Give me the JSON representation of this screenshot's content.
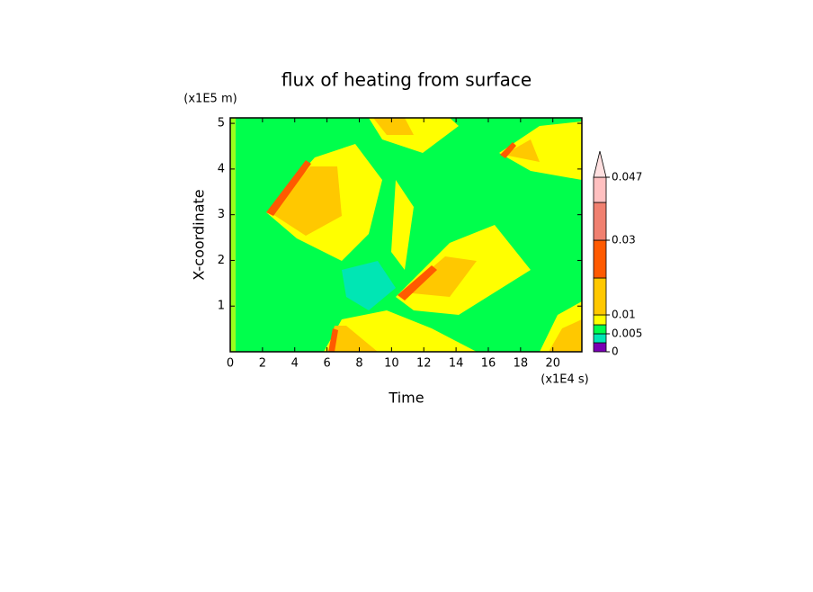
{
  "chart_data": {
    "type": "contour",
    "title": "flux of heating from surface",
    "x_label": "Time",
    "y_label": "X-coordinate",
    "x_unit": "(x1E4 s)",
    "y_unit": "(x1E5 m)",
    "xlim": [
      0,
      21.8
    ],
    "xticks": [
      0,
      2,
      4,
      6,
      8,
      10,
      12,
      14,
      16,
      18,
      20
    ],
    "ylim": [
      0,
      5.12
    ],
    "yticks": [
      1,
      2,
      3,
      4,
      5
    ],
    "colorbar": {
      "ticks": [
        0,
        0.005,
        0.01,
        0.03,
        0.047
      ],
      "colors": [
        "#7800b4",
        "#00e6b4",
        "#00ff4c",
        "#ffff00",
        "#ffc800",
        "#ff5a00",
        "#f08070",
        "#ffc0c0",
        "#ffe0e0"
      ]
    }
  }
}
